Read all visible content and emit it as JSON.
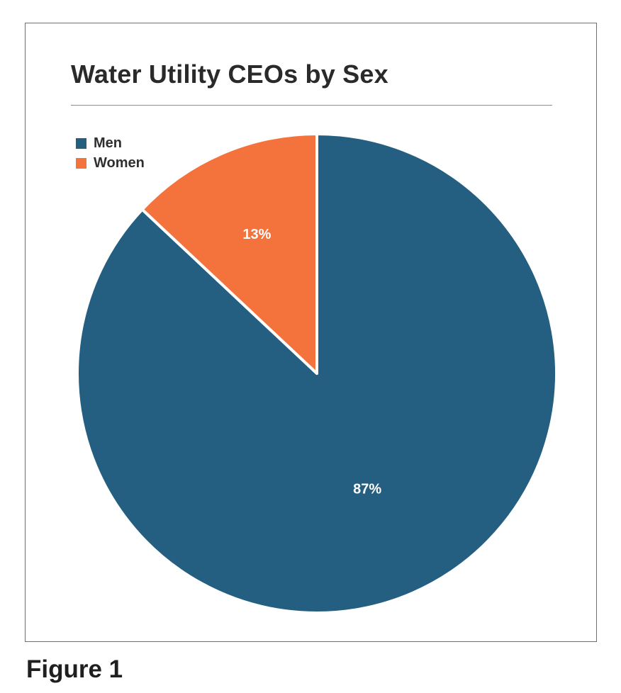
{
  "chart_data": {
    "type": "pie",
    "title": "Water Utility CEOs by Sex",
    "categories": [
      "Men",
      "Women"
    ],
    "values": [
      87,
      13
    ],
    "data_labels": [
      "87%",
      "13%"
    ],
    "colors": [
      "#245f82",
      "#f4733d"
    ],
    "legend_position": "top-left",
    "start_angle": "12 o'clock, clockwise"
  },
  "caption": "Figure 1"
}
